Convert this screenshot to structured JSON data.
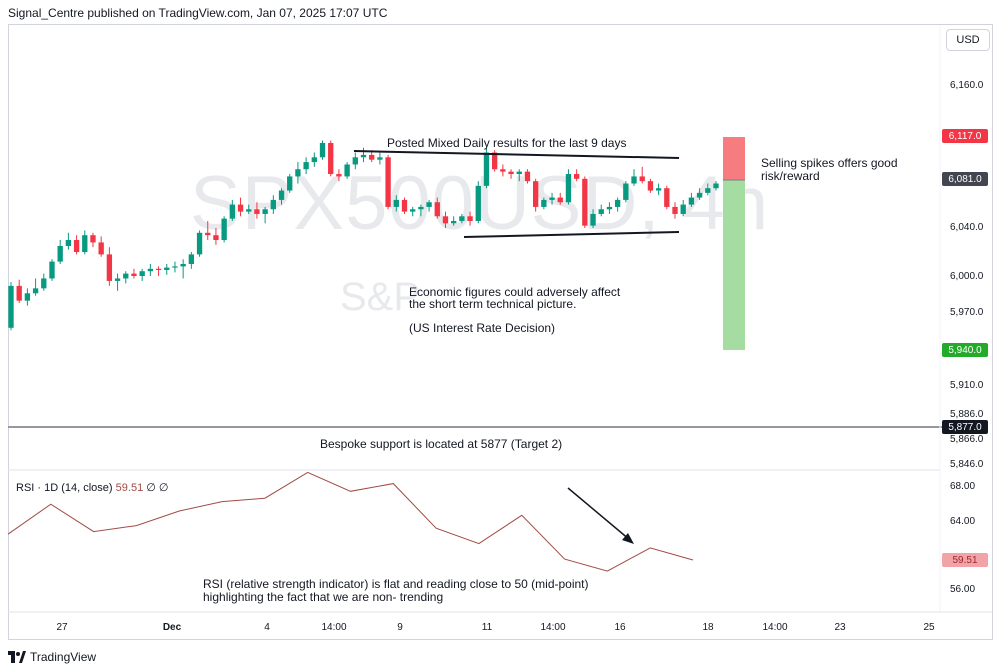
{
  "header": {
    "publisher": "Signal_Centre published on TradingView.com, Jan 07, 2025 17:07 UTC"
  },
  "currency_button": "USD",
  "watermark": {
    "symbol": "SPX500USD, 4h",
    "subtitle": "S&P"
  },
  "annotations": {
    "mixed_results": "Posted Mixed Daily results for the last 9 days",
    "selling_spikes_1": "Selling spikes offers good",
    "selling_spikes_2": "risk/reward",
    "economic_1": "Economic figures could adversely affect",
    "economic_2": "the short term technical picture.",
    "economic_3": "(US Interest Rate Decision)",
    "support": "Bespoke support is located at 5877 (Target 2)",
    "rsi_note_1": "RSI (relative strength indicator) is flat and reading close to 50 (mid-point)",
    "rsi_note_2": "highlighting the fact that we are non- trending"
  },
  "rsi_legend": {
    "label": "RSI · 1D (14, close)",
    "value": "59.51",
    "extra": "∅ ∅"
  },
  "price_axis": [
    "6,160.0",
    "6,040.0",
    "6,000.0",
    "5,970.0",
    "5,910.0",
    "5,886.0",
    "5,866.0",
    "5,846.0"
  ],
  "rsi_axis": [
    "68.00",
    "64.00",
    "56.00"
  ],
  "badges": {
    "stop": "6,117.0",
    "current": "6,081.0",
    "target": "5,940.0",
    "support": "5,877.0",
    "rsi": "59.51"
  },
  "colors": {
    "up": "#089981",
    "down": "#f23645",
    "stop_zone": "#f77c80",
    "target_zone": "#a5dca1",
    "rsi_line": "#a14b44"
  },
  "x_axis": [
    "27",
    "Dec",
    "4",
    "14:00",
    "9",
    "11",
    "14:00",
    "16",
    "18",
    "14:00",
    "23",
    "25"
  ],
  "footer": {
    "brand": "TradingView"
  },
  "chart_data": {
    "type": "candlestick",
    "title": "SPX500USD, 4h",
    "y_unit": "USD",
    "candles": [
      [
        5958,
        5995,
        5956,
        5992
      ],
      [
        5992,
        5997,
        5978,
        5980
      ],
      [
        5980,
        5990,
        5976,
        5986
      ],
      [
        5986,
        5998,
        5984,
        5990
      ],
      [
        5990,
        6002,
        5988,
        5998
      ],
      [
        5998,
        6014,
        5996,
        6012
      ],
      [
        6012,
        6030,
        6010,
        6025
      ],
      [
        6025,
        6036,
        6022,
        6030
      ],
      [
        6030,
        6034,
        6018,
        6020
      ],
      [
        6020,
        6038,
        6018,
        6034
      ],
      [
        6034,
        6036,
        6024,
        6028
      ],
      [
        6028,
        6033,
        6016,
        6018
      ],
      [
        6018,
        6024,
        5992,
        5996
      ],
      [
        5996,
        6002,
        5988,
        5998
      ],
      [
        5998,
        6004,
        5994,
        6002
      ],
      [
        6002,
        6006,
        5998,
        6000
      ],
      [
        6000,
        6006,
        5996,
        6004
      ],
      [
        6004,
        6010,
        6000,
        6006
      ],
      [
        6006,
        6008,
        6000,
        6005
      ],
      [
        6005,
        6010,
        6001,
        6007
      ],
      [
        6007,
        6012,
        6003,
        6008
      ],
      [
        6008,
        6014,
        5998,
        6010
      ],
      [
        6010,
        6020,
        6006,
        6018
      ],
      [
        6018,
        6038,
        6016,
        6036
      ],
      [
        6036,
        6046,
        6030,
        6034
      ],
      [
        6034,
        6040,
        6026,
        6030
      ],
      [
        6030,
        6050,
        6028,
        6048
      ],
      [
        6048,
        6064,
        6046,
        6060
      ],
      [
        6060,
        6066,
        6050,
        6054
      ],
      [
        6054,
        6060,
        6052,
        6056
      ],
      [
        6056,
        6062,
        6048,
        6052
      ],
      [
        6052,
        6058,
        6044,
        6056
      ],
      [
        6056,
        6068,
        6052,
        6064
      ],
      [
        6064,
        6074,
        6060,
        6072
      ],
      [
        6072,
        6086,
        6070,
        6084
      ],
      [
        6084,
        6096,
        6078,
        6090
      ],
      [
        6090,
        6100,
        6086,
        6096
      ],
      [
        6096,
        6104,
        6092,
        6100
      ],
      [
        6100,
        6114,
        6098,
        6112
      ],
      [
        6112,
        6114,
        6084,
        6086
      ],
      [
        6086,
        6090,
        6080,
        6084
      ],
      [
        6084,
        6096,
        6082,
        6094
      ],
      [
        6094,
        6104,
        6090,
        6100
      ],
      [
        6100,
        6108,
        6096,
        6102
      ],
      [
        6102,
        6106,
        6096,
        6098
      ],
      [
        6098,
        6104,
        6094,
        6100
      ],
      [
        6100,
        6102,
        6056,
        6058
      ],
      [
        6058,
        6068,
        6054,
        6064
      ],
      [
        6064,
        6066,
        6052,
        6054
      ],
      [
        6054,
        6058,
        6050,
        6056
      ],
      [
        6056,
        6060,
        6050,
        6058
      ],
      [
        6058,
        6064,
        6054,
        6062
      ],
      [
        6062,
        6066,
        6048,
        6050
      ],
      [
        6050,
        6054,
        6040,
        6044
      ],
      [
        6044,
        6050,
        6042,
        6046
      ],
      [
        6046,
        6052,
        6044,
        6050
      ],
      [
        6050,
        6054,
        6042,
        6046
      ],
      [
        6046,
        6080,
        6044,
        6076
      ],
      [
        6076,
        6108,
        6074,
        6104
      ],
      [
        6104,
        6106,
        6088,
        6090
      ],
      [
        6090,
        6094,
        6084,
        6088
      ],
      [
        6088,
        6090,
        6082,
        6086
      ],
      [
        6086,
        6090,
        6080,
        6088
      ],
      [
        6088,
        6090,
        6078,
        6080
      ],
      [
        6080,
        6082,
        6054,
        6058
      ],
      [
        6058,
        6066,
        6056,
        6064
      ],
      [
        6064,
        6070,
        6060,
        6066
      ],
      [
        6066,
        6070,
        6060,
        6062
      ],
      [
        6062,
        6090,
        6060,
        6086
      ],
      [
        6086,
        6090,
        6080,
        6082
      ],
      [
        6082,
        6084,
        6040,
        6042
      ],
      [
        6042,
        6056,
        6040,
        6052
      ],
      [
        6052,
        6060,
        6050,
        6056
      ],
      [
        6056,
        6062,
        6052,
        6058
      ],
      [
        6058,
        6066,
        6054,
        6064
      ],
      [
        6064,
        6080,
        6062,
        6078
      ],
      [
        6078,
        6090,
        6076,
        6084
      ],
      [
        6084,
        6092,
        6078,
        6080
      ],
      [
        6080,
        6082,
        6070,
        6072
      ],
      [
        6072,
        6078,
        6068,
        6074
      ],
      [
        6074,
        6076,
        6056,
        6058
      ],
      [
        6058,
        6062,
        6048,
        6052
      ],
      [
        6052,
        6064,
        6050,
        6060
      ],
      [
        6060,
        6070,
        6058,
        6066
      ],
      [
        6066,
        6074,
        6064,
        6070
      ],
      [
        6070,
        6078,
        6068,
        6074
      ],
      [
        6074,
        6080,
        6072,
        6078
      ]
    ],
    "levels": {
      "stop": 6117.0,
      "entry": 6081.0,
      "target": 5940.0,
      "support": 5877.0
    },
    "rsi": {
      "label": "RSI · 1D (14, close)",
      "current": 59.51,
      "values": [
        62.5,
        66.0,
        62.8,
        63.5,
        65.2,
        66.3,
        66.7,
        69.7,
        67.5,
        68.4,
        63.2,
        61.4,
        64.7,
        59.6,
        58.2,
        60.9,
        59.5
      ]
    }
  }
}
